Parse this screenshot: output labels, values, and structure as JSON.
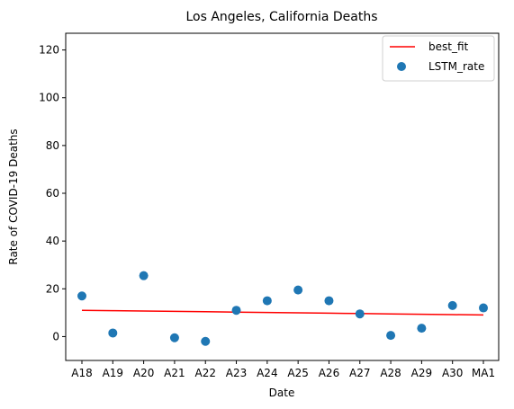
{
  "chart_data": {
    "type": "scatter",
    "title": "Los Angeles, California Deaths",
    "xlabel": "Date",
    "ylabel": "Rate of COVID-19 Deaths",
    "categories": [
      "A18",
      "A19",
      "A20",
      "A21",
      "A22",
      "A23",
      "A24",
      "A25",
      "A26",
      "A27",
      "A28",
      "A29",
      "A30",
      "MA1"
    ],
    "ylim": [
      -10,
      127
    ],
    "yticks": [
      0,
      20,
      40,
      60,
      80,
      100,
      120
    ],
    "grid": false,
    "legend_position": "top-right",
    "series": [
      {
        "name": "best_fit",
        "kind": "line",
        "color": "#ff0000",
        "values": [
          11.0,
          10.85,
          10.7,
          10.55,
          10.4,
          10.25,
          10.1,
          9.95,
          9.8,
          9.65,
          9.5,
          9.35,
          9.2,
          9.05
        ]
      },
      {
        "name": "LSTM_rate",
        "kind": "scatter",
        "color": "#1f77b4",
        "values": [
          17.0,
          1.5,
          25.5,
          -0.5,
          -2.0,
          11.0,
          15.0,
          19.5,
          15.0,
          9.5,
          0.5,
          3.5,
          13.0,
          12.0
        ]
      }
    ]
  }
}
